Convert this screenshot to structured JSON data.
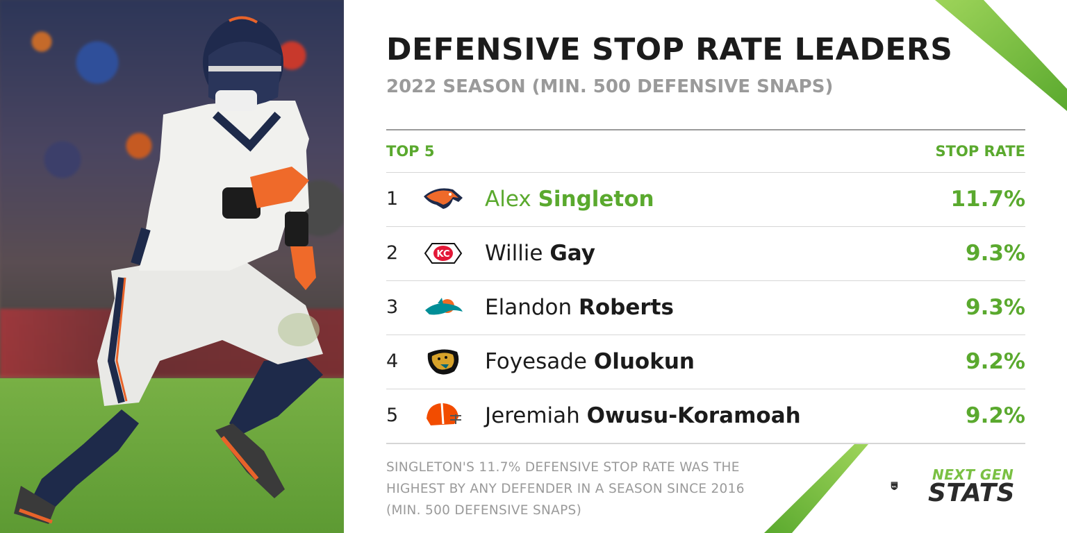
{
  "header": {
    "title": "DEFENSIVE STOP RATE LEADERS",
    "subtitle": "2022 SEASON (MIN. 500 DEFENSIVE SNAPS)"
  },
  "table": {
    "left_header": "TOP 5",
    "right_header": "STOP RATE",
    "rows": [
      {
        "rank": "1",
        "first": "Alex",
        "last": "Singleton",
        "rate": "11.7%",
        "team_logo": "broncos-logo"
      },
      {
        "rank": "2",
        "first": "Willie",
        "last": "Gay",
        "rate": "9.3%",
        "team_logo": "chiefs-logo"
      },
      {
        "rank": "3",
        "first": "Elandon",
        "last": "Roberts",
        "rate": "9.3%",
        "team_logo": "dolphins-logo"
      },
      {
        "rank": "4",
        "first": "Foyesade",
        "last": "Oluokun",
        "rate": "9.2%",
        "team_logo": "jaguars-logo"
      },
      {
        "rank": "5",
        "first": "Jeremiah",
        "last": "Owusu-Koramoah",
        "rate": "9.2%",
        "team_logo": "browns-logo"
      }
    ]
  },
  "footnote": "SINGLETON'S 11.7% DEFENSIVE STOP RATE WAS THE HIGHEST BY ANY DEFENDER IN A SEASON SINCE 2016 (MIN. 500 DEFENSIVE SNAPS)",
  "branding": {
    "ngs_line1": "NEXT GEN",
    "ngs_line2": "STATS",
    "shield_text": "NFL"
  },
  "colors": {
    "accent_green": "#5aa92e",
    "title_dark": "#1b1b1b",
    "subtitle_gray": "#9a9a9a"
  }
}
